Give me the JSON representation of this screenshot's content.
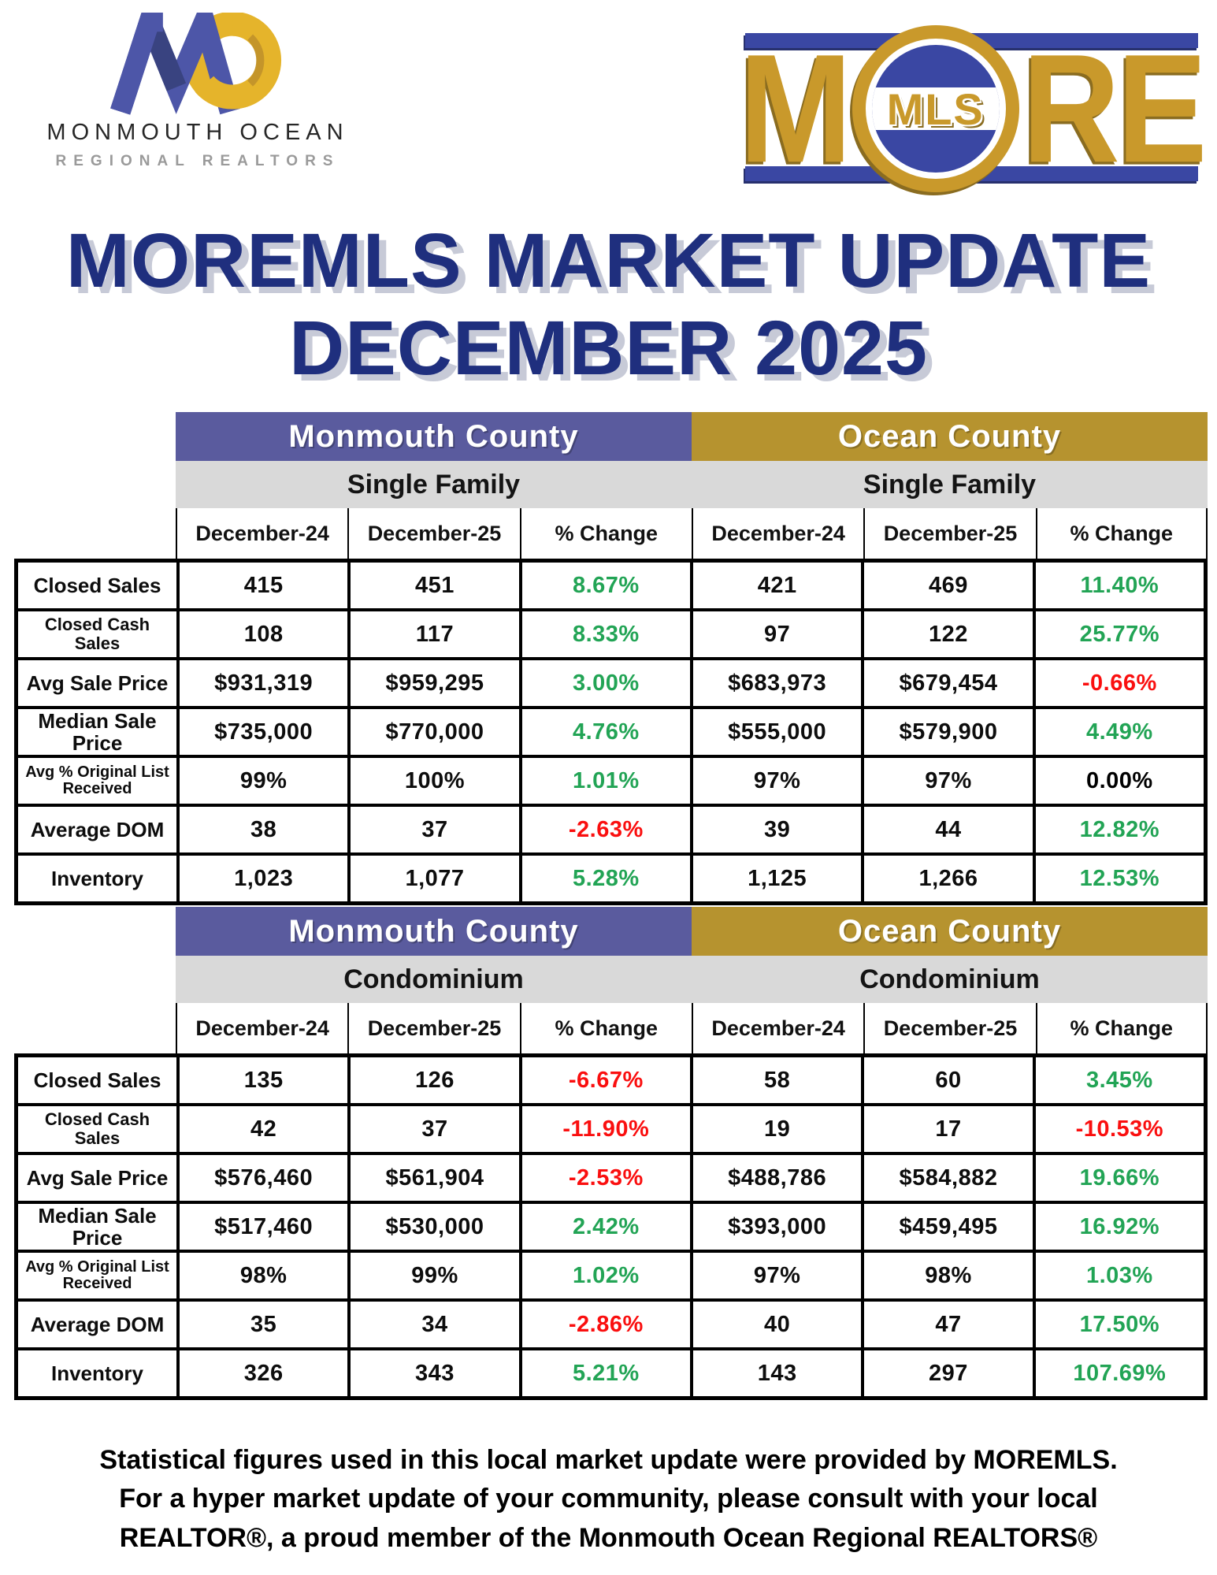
{
  "brand": {
    "left_logo": {
      "monogram": "MO",
      "line1": "MONMOUTH OCEAN",
      "line2": "REGIONAL REALTORS"
    },
    "right_logo": {
      "letter_m": "M",
      "mls": "MLS",
      "letters_re": "RE"
    }
  },
  "title": {
    "line1": "MOREMLS MARKET UPDATE",
    "line2": "DECEMBER 2025"
  },
  "colors": {
    "monmouth_purple": "#5a5b9e",
    "ocean_gold": "#b6932f",
    "band_gray": "#d9d9d9",
    "positive_green": "#22a455",
    "negative_red": "#fa0f0f",
    "neutral_black": "#000000",
    "title_navy": "#1f2f7e",
    "logo_blue": "#3a47a3",
    "logo_gold": "#c9992b"
  },
  "tables": [
    {
      "monmouth_header": "Monmouth County",
      "ocean_header": "Ocean County",
      "monmouth_type": "Single Family",
      "ocean_type": "Single Family",
      "columns": [
        "December-24",
        "December-25",
        "% Change"
      ],
      "rows": [
        {
          "label": "Closed Sales",
          "monmouth": {
            "dec24": "415",
            "dec25": "451",
            "change": "8.67%",
            "trend": "up"
          },
          "ocean": {
            "dec24": "421",
            "dec25": "469",
            "change": "11.40%",
            "trend": "up"
          }
        },
        {
          "label": "Closed Cash Sales",
          "monmouth": {
            "dec24": "108",
            "dec25": "117",
            "change": "8.33%",
            "trend": "up"
          },
          "ocean": {
            "dec24": "97",
            "dec25": "122",
            "change": "25.77%",
            "trend": "up"
          }
        },
        {
          "label": "Avg Sale Price",
          "monmouth": {
            "dec24": "$931,319",
            "dec25": "$959,295",
            "change": "3.00%",
            "trend": "up"
          },
          "ocean": {
            "dec24": "$683,973",
            "dec25": "$679,454",
            "change": "-0.66%",
            "trend": "down"
          }
        },
        {
          "label": "Median Sale Price",
          "monmouth": {
            "dec24": "$735,000",
            "dec25": "$770,000",
            "change": "4.76%",
            "trend": "up"
          },
          "ocean": {
            "dec24": "$555,000",
            "dec25": "$579,900",
            "change": "4.49%",
            "trend": "up"
          }
        },
        {
          "label": "Avg % Original List Received",
          "monmouth": {
            "dec24": "99%",
            "dec25": "100%",
            "change": "1.01%",
            "trend": "up"
          },
          "ocean": {
            "dec24": "97%",
            "dec25": "97%",
            "change": "0.00%",
            "trend": "flat"
          }
        },
        {
          "label": "Average DOM",
          "monmouth": {
            "dec24": "38",
            "dec25": "37",
            "change": "-2.63%",
            "trend": "down"
          },
          "ocean": {
            "dec24": "39",
            "dec25": "44",
            "change": "12.82%",
            "trend": "up"
          }
        },
        {
          "label": "Inventory",
          "monmouth": {
            "dec24": "1,023",
            "dec25": "1,077",
            "change": "5.28%",
            "trend": "up"
          },
          "ocean": {
            "dec24": "1,125",
            "dec25": "1,266",
            "change": "12.53%",
            "trend": "up"
          }
        }
      ]
    },
    {
      "monmouth_header": "Monmouth County",
      "ocean_header": "Ocean County",
      "monmouth_type": "Condominium",
      "ocean_type": "Condominium",
      "columns": [
        "December-24",
        "December-25",
        "% Change"
      ],
      "rows": [
        {
          "label": "Closed Sales",
          "monmouth": {
            "dec24": "135",
            "dec25": "126",
            "change": "-6.67%",
            "trend": "down"
          },
          "ocean": {
            "dec24": "58",
            "dec25": "60",
            "change": "3.45%",
            "trend": "up"
          }
        },
        {
          "label": "Closed Cash Sales",
          "monmouth": {
            "dec24": "42",
            "dec25": "37",
            "change": "-11.90%",
            "trend": "down"
          },
          "ocean": {
            "dec24": "19",
            "dec25": "17",
            "change": "-10.53%",
            "trend": "down"
          }
        },
        {
          "label": "Avg Sale Price",
          "monmouth": {
            "dec24": "$576,460",
            "dec25": "$561,904",
            "change": "-2.53%",
            "trend": "down"
          },
          "ocean": {
            "dec24": "$488,786",
            "dec25": "$584,882",
            "change": "19.66%",
            "trend": "up"
          }
        },
        {
          "label": "Median Sale Price",
          "monmouth": {
            "dec24": "$517,460",
            "dec25": "$530,000",
            "change": "2.42%",
            "trend": "up"
          },
          "ocean": {
            "dec24": "$393,000",
            "dec25": "$459,495",
            "change": "16.92%",
            "trend": "up"
          }
        },
        {
          "label": "Avg % Original List Received",
          "monmouth": {
            "dec24": "98%",
            "dec25": "99%",
            "change": "1.02%",
            "trend": "up"
          },
          "ocean": {
            "dec24": "97%",
            "dec25": "98%",
            "change": "1.03%",
            "trend": "up"
          }
        },
        {
          "label": "Average DOM",
          "monmouth": {
            "dec24": "35",
            "dec25": "34",
            "change": "-2.86%",
            "trend": "down"
          },
          "ocean": {
            "dec24": "40",
            "dec25": "47",
            "change": "17.50%",
            "trend": "up"
          }
        },
        {
          "label": "Inventory",
          "monmouth": {
            "dec24": "326",
            "dec25": "343",
            "change": "5.21%",
            "trend": "up"
          },
          "ocean": {
            "dec24": "143",
            "dec25": "297",
            "change": "107.69%",
            "trend": "up"
          }
        }
      ]
    }
  ],
  "footer": {
    "lines": [
      "Statistical figures used in this local market update were provided by MOREMLS.",
      "For a hyper market update of your community, please consult with your local",
      "REALTOR®, a proud member of the Monmouth Ocean Regional REALTORS®"
    ]
  }
}
